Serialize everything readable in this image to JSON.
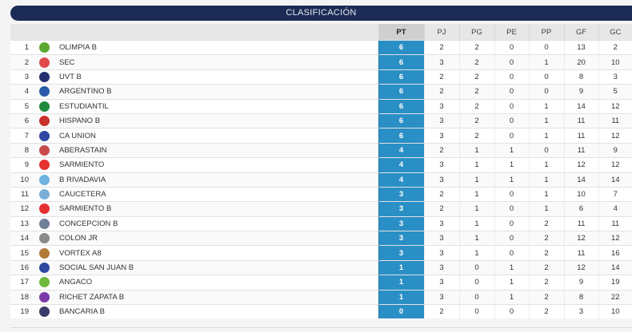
{
  "title": "CLASIFICACIÓN",
  "headers": [
    "PT",
    "PJ",
    "PG",
    "PE",
    "PP",
    "GF",
    "GC"
  ],
  "rows": [
    {
      "pos": "1",
      "team": "OLIMPIA B",
      "logo": "olimpia-logo",
      "pt": "6",
      "pj": "2",
      "pg": "2",
      "pe": "0",
      "pp": "0",
      "gf": "13",
      "gc": "2"
    },
    {
      "pos": "2",
      "team": "SEC",
      "logo": "sec-logo",
      "pt": "6",
      "pj": "3",
      "pg": "2",
      "pe": "0",
      "pp": "1",
      "gf": "20",
      "gc": "10"
    },
    {
      "pos": "3",
      "team": "UVT B",
      "logo": "uvt-logo",
      "pt": "6",
      "pj": "2",
      "pg": "2",
      "pe": "0",
      "pp": "0",
      "gf": "8",
      "gc": "3"
    },
    {
      "pos": "4",
      "team": "ARGENTINO B",
      "logo": "argentino-logo",
      "pt": "6",
      "pj": "2",
      "pg": "2",
      "pe": "0",
      "pp": "0",
      "gf": "9",
      "gc": "5"
    },
    {
      "pos": "5",
      "team": "ESTUDIANTIL",
      "logo": "estudiantil-logo",
      "pt": "6",
      "pj": "3",
      "pg": "2",
      "pe": "0",
      "pp": "1",
      "gf": "14",
      "gc": "12"
    },
    {
      "pos": "6",
      "team": "HISPANO B",
      "logo": "hispano-logo",
      "pt": "6",
      "pj": "3",
      "pg": "2",
      "pe": "0",
      "pp": "1",
      "gf": "11",
      "gc": "11"
    },
    {
      "pos": "7",
      "team": "CA UNION",
      "logo": "union-logo",
      "pt": "6",
      "pj": "3",
      "pg": "2",
      "pe": "0",
      "pp": "1",
      "gf": "11",
      "gc": "12"
    },
    {
      "pos": "8",
      "team": "ABERASTAIN",
      "logo": "aberastain-logo",
      "pt": "4",
      "pj": "2",
      "pg": "1",
      "pe": "1",
      "pp": "0",
      "gf": "11",
      "gc": "9"
    },
    {
      "pos": "9",
      "team": "SARMIENTO",
      "logo": "sarmiento-logo",
      "pt": "4",
      "pj": "3",
      "pg": "1",
      "pe": "1",
      "pp": "1",
      "gf": "12",
      "gc": "12"
    },
    {
      "pos": "10",
      "team": "B RIVADAVIA",
      "logo": "rivadavia-logo",
      "pt": "4",
      "pj": "3",
      "pg": "1",
      "pe": "1",
      "pp": "1",
      "gf": "14",
      "gc": "14"
    },
    {
      "pos": "11",
      "team": "CAUCETERA",
      "logo": "caucetera-logo",
      "pt": "3",
      "pj": "2",
      "pg": "1",
      "pe": "0",
      "pp": "1",
      "gf": "10",
      "gc": "7"
    },
    {
      "pos": "12",
      "team": "SARMIENTO B",
      "logo": "sarmiento-b-logo",
      "pt": "3",
      "pj": "2",
      "pg": "1",
      "pe": "0",
      "pp": "1",
      "gf": "6",
      "gc": "4"
    },
    {
      "pos": "13",
      "team": "CONCEPCION B",
      "logo": "concepcion-logo",
      "pt": "3",
      "pj": "3",
      "pg": "1",
      "pe": "0",
      "pp": "2",
      "gf": "11",
      "gc": "11"
    },
    {
      "pos": "14",
      "team": "COLON JR",
      "logo": "colon-logo",
      "pt": "3",
      "pj": "3",
      "pg": "1",
      "pe": "0",
      "pp": "2",
      "gf": "12",
      "gc": "12"
    },
    {
      "pos": "15",
      "team": "VORTEX A8",
      "logo": "vortex-logo",
      "pt": "3",
      "pj": "3",
      "pg": "1",
      "pe": "0",
      "pp": "2",
      "gf": "11",
      "gc": "16"
    },
    {
      "pos": "16",
      "team": "SOCIAL SAN JUAN B",
      "logo": "social-logo",
      "pt": "1",
      "pj": "3",
      "pg": "0",
      "pe": "1",
      "pp": "2",
      "gf": "12",
      "gc": "14"
    },
    {
      "pos": "17",
      "team": "ANGACO",
      "logo": "angaco-logo",
      "pt": "1",
      "pj": "3",
      "pg": "0",
      "pe": "1",
      "pp": "2",
      "gf": "9",
      "gc": "19"
    },
    {
      "pos": "18",
      "team": "RICHET ZAPATA B",
      "logo": "richet-logo",
      "pt": "1",
      "pj": "3",
      "pg": "0",
      "pe": "1",
      "pp": "2",
      "gf": "8",
      "gc": "22"
    },
    {
      "pos": "19",
      "team": "BANCARIA B",
      "logo": "bancaria-logo",
      "pt": "0",
      "pj": "2",
      "pg": "0",
      "pe": "0",
      "pp": "2",
      "gf": "3",
      "gc": "10"
    }
  ],
  "logo_colors": [
    "#5aa832",
    "#e04b4b",
    "#24306e",
    "#2a5aa8",
    "#1f8a3c",
    "#c9302c",
    "#2d4aa0",
    "#c94a4a",
    "#e53030",
    "#6fb3e0",
    "#7aaed6",
    "#e53030",
    "#6f7f9a",
    "#8a8a8a",
    "#b07a3a",
    "#2d4aa0",
    "#6fb83a",
    "#7a3aa8",
    "#3a3a6a"
  ]
}
